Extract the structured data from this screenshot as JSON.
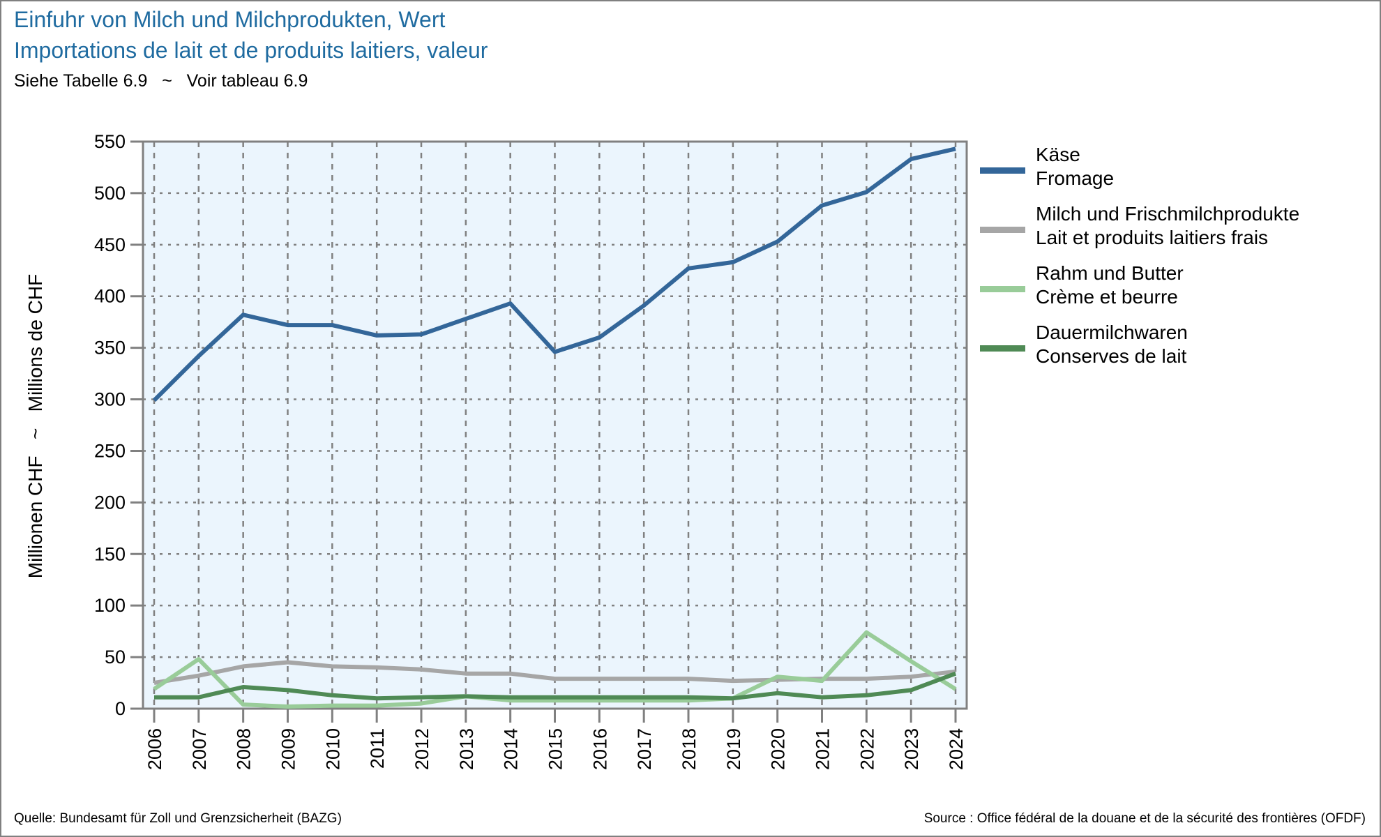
{
  "header": {
    "title_de": "Einfuhr von Milch und Milchprodukten, Wert",
    "title_fr": "Importations de lait et de produits laitiers, valeur",
    "subtitle": "Siehe Tabelle 6.9   ~   Voir tableau 6.9"
  },
  "footer": {
    "source_de": "Quelle: Bundesamt für Zoll und Grenzsicherheit (BAZG)",
    "source_fr": "Source : Office fédéral de la douane et de la sécurité des frontières (OFDF)"
  },
  "chart_data": {
    "type": "line",
    "title": "Einfuhr von Milch und Milchprodukten, Wert / Importations de lait et de produits laitiers, valeur",
    "xlabel": "",
    "ylabel": "Millionen CHF   ~   Millions de CHF",
    "x": [
      2006,
      2007,
      2008,
      2009,
      2010,
      2011,
      2012,
      2013,
      2014,
      2015,
      2016,
      2017,
      2018,
      2019,
      2020,
      2021,
      2022,
      2023,
      2024
    ],
    "x_tick_labels": [
      "2006",
      "2007",
      "2008",
      "2009",
      "2010",
      "2011",
      "2012",
      "2013",
      "2014",
      "2015",
      "2016",
      "2017",
      "2018",
      "2019",
      "2020",
      "2021",
      "2022",
      "2023",
      "2024"
    ],
    "ylim": [
      0,
      550
    ],
    "y_ticks": [
      0,
      50,
      100,
      150,
      200,
      250,
      300,
      350,
      400,
      450,
      500,
      550
    ],
    "grid": true,
    "legend_position": "right",
    "plot_background": "#EBF5FD",
    "series": [
      {
        "name": "Käse",
        "name_fr": "Fromage",
        "color": "#336699",
        "values": [
          299,
          342,
          382,
          372,
          372,
          362,
          363,
          378,
          393,
          346,
          360,
          391,
          427,
          433,
          453,
          488,
          501,
          533,
          543
        ]
      },
      {
        "name": "Milch und Frischmilchprodukte",
        "name_fr": "Lait et produits laitiers frais",
        "color": "#A6A6A6",
        "values": [
          25,
          32,
          41,
          45,
          41,
          40,
          38,
          34,
          34,
          29,
          29,
          29,
          29,
          27,
          28,
          29,
          29,
          31,
          36
        ]
      },
      {
        "name": "Rahm und Butter",
        "name_fr": "Crème et beurre",
        "color": "#99CC99",
        "values": [
          19,
          48,
          4,
          2,
          3,
          3,
          5,
          12,
          8,
          8,
          8,
          8,
          8,
          10,
          31,
          27,
          74,
          46,
          19
        ]
      },
      {
        "name": "Dauermilchwaren",
        "name_fr": "Conserves de lait",
        "color": "#4F8A55",
        "values": [
          11,
          11,
          21,
          18,
          13,
          10,
          11,
          12,
          11,
          11,
          11,
          11,
          11,
          10,
          15,
          11,
          13,
          18,
          34
        ]
      }
    ]
  }
}
